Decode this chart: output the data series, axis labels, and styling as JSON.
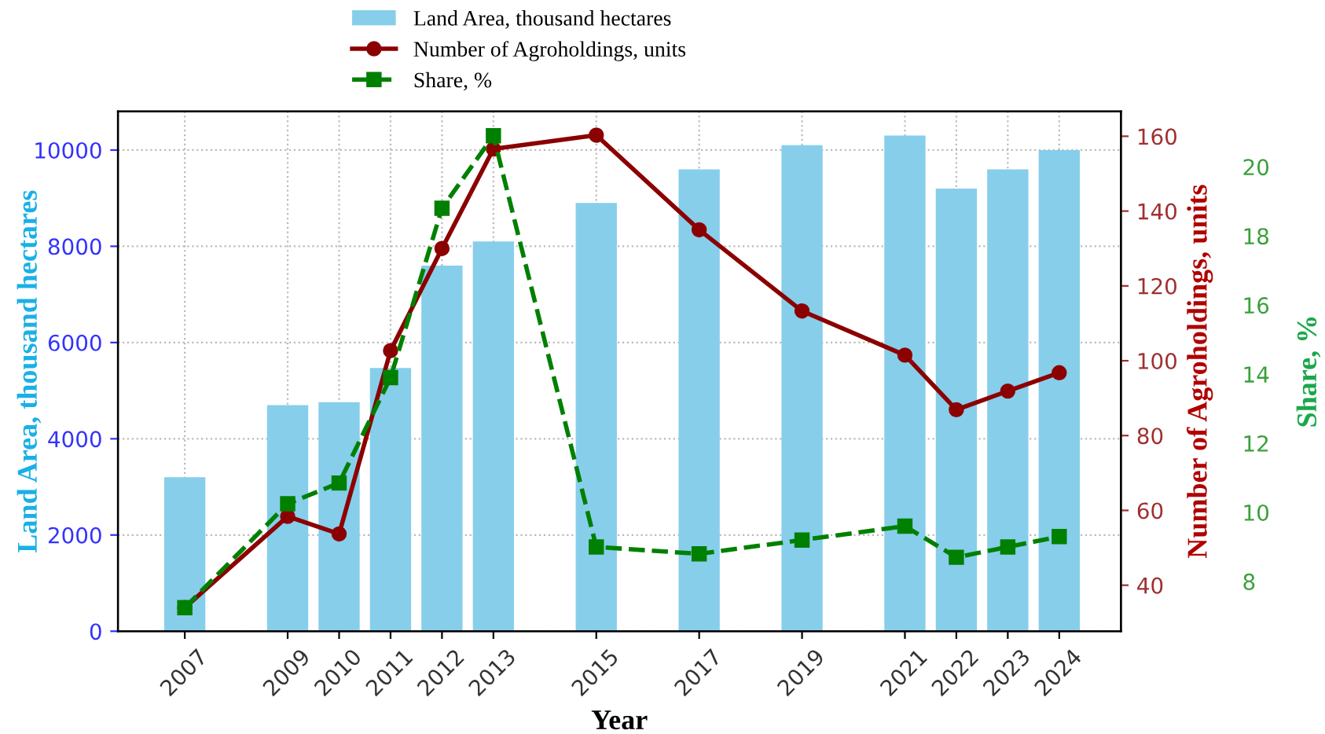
{
  "chart_data": {
    "type": "bar",
    "xlabel": "Year",
    "ylabel": "Land Area, thousand hectares",
    "y2label": "Number of Agroholdings, units",
    "y3label": "Share, %",
    "x": [
      2007,
      2009,
      2010,
      2011,
      2012,
      2013,
      2015,
      2017,
      2019,
      2021,
      2022,
      2023,
      2024
    ],
    "xlim": [
      2005.7,
      2025.2
    ],
    "xticks": [
      2007,
      2009,
      2010,
      2011,
      2012,
      2013,
      2015,
      2017,
      2019,
      2021,
      2022,
      2023,
      2024
    ],
    "ylim": [
      0,
      10800
    ],
    "yticks": [
      0,
      2000,
      4000,
      6000,
      8000,
      10000
    ],
    "y2lim": [
      27.7,
      166.6
    ],
    "y2ticks": [
      40,
      60,
      80,
      100,
      120,
      140,
      160
    ],
    "y3lim": [
      6.56,
      21.6
    ],
    "y3ticks": [
      8,
      10,
      12,
      14,
      16,
      18,
      20
    ],
    "grid": true,
    "legend": "top",
    "series": [
      {
        "name": "Land Area, thousand hectares",
        "axis": "y",
        "color": "#87ceeb",
        "values": [
          3200,
          4700,
          4760,
          5470,
          7600,
          8100,
          8900,
          9600,
          10100,
          10300,
          9200,
          9600,
          10000
        ]
      },
      {
        "name": "Number of Agroholdings, units",
        "type": "line",
        "axis": "y2",
        "color": "#8b0000",
        "marker": "circle",
        "line_style": "solid",
        "values": [
          34,
          58.4,
          53.7,
          102.7,
          130,
          156.6,
          160.3,
          135,
          113.3,
          101.5,
          86.9,
          91.9,
          96.8
        ]
      },
      {
        "name": "Share, %",
        "type": "line",
        "axis": "y3",
        "color": "#008000",
        "marker": "square",
        "line_style": "dashed",
        "values": [
          7.24,
          10.25,
          10.85,
          13.9,
          18.8,
          20.9,
          9.0,
          8.8,
          9.2,
          9.6,
          8.7,
          9.0,
          9.3
        ]
      }
    ]
  }
}
